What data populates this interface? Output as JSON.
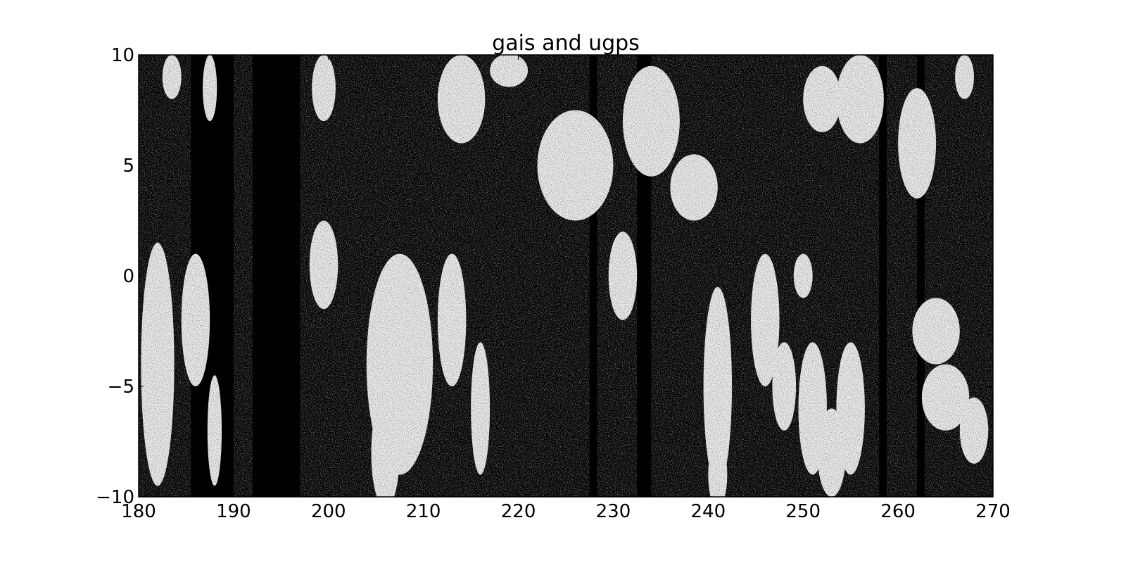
{
  "chart_data": {
    "type": "heatmap",
    "title": "gais and ugps",
    "xlabel": "",
    "ylabel": "",
    "xlim": [
      180,
      270
    ],
    "ylim": [
      -10,
      10
    ],
    "x_ticks": [
      "180",
      "190",
      "200",
      "210",
      "220",
      "230",
      "240",
      "250",
      "260",
      "270"
    ],
    "y_ticks": [
      "10",
      "5",
      "0",
      "−5",
      "−10"
    ],
    "colormap": "binary (black = 0, white = high)",
    "grid": false,
    "legend": "none",
    "colors": {
      "background": "#000000",
      "foreground": "#ffffff",
      "axis": "#000000"
    },
    "dark_bands_x": [
      [
        185.5,
        190
      ],
      [
        192,
        197
      ],
      [
        227.5,
        228.3
      ],
      [
        232.5,
        234
      ],
      [
        258,
        258.8
      ],
      [
        262,
        262.8
      ]
    ],
    "bright_blobs": [
      {
        "x": 182,
        "y": -4,
        "w": 3.5,
        "h": 11
      },
      {
        "x": 186,
        "y": -2,
        "w": 3,
        "h": 6
      },
      {
        "x": 188,
        "y": -7,
        "w": 1.5,
        "h": 5
      },
      {
        "x": 183.5,
        "y": 9,
        "w": 2,
        "h": 2
      },
      {
        "x": 187.5,
        "y": 8.5,
        "w": 1.5,
        "h": 3
      },
      {
        "x": 199.5,
        "y": 0.5,
        "w": 3,
        "h": 4
      },
      {
        "x": 199.5,
        "y": 8.5,
        "w": 2.5,
        "h": 3
      },
      {
        "x": 207.5,
        "y": -4,
        "w": 7,
        "h": 10
      },
      {
        "x": 213,
        "y": -2,
        "w": 3,
        "h": 6
      },
      {
        "x": 216,
        "y": -6,
        "w": 2,
        "h": 6
      },
      {
        "x": 206,
        "y": -8,
        "w": 3,
        "h": 5
      },
      {
        "x": 214,
        "y": 8,
        "w": 5,
        "h": 4
      },
      {
        "x": 219,
        "y": 9.3,
        "w": 4,
        "h": 1.5
      },
      {
        "x": 226,
        "y": 5,
        "w": 8,
        "h": 5
      },
      {
        "x": 234,
        "y": 7,
        "w": 6,
        "h": 5
      },
      {
        "x": 231,
        "y": 0,
        "w": 3,
        "h": 4
      },
      {
        "x": 238.5,
        "y": 4,
        "w": 5,
        "h": 3
      },
      {
        "x": 241,
        "y": -5,
        "w": 3,
        "h": 9
      },
      {
        "x": 246,
        "y": -2,
        "w": 3,
        "h": 6
      },
      {
        "x": 248,
        "y": -5,
        "w": 2.5,
        "h": 4
      },
      {
        "x": 250,
        "y": 0,
        "w": 2,
        "h": 2
      },
      {
        "x": 241,
        "y": -9,
        "w": 2,
        "h": 3
      },
      {
        "x": 251,
        "y": -6,
        "w": 3,
        "h": 6
      },
      {
        "x": 255,
        "y": -6,
        "w": 3,
        "h": 6
      },
      {
        "x": 253,
        "y": -8,
        "w": 3,
        "h": 4
      },
      {
        "x": 256,
        "y": 8,
        "w": 5,
        "h": 4
      },
      {
        "x": 262,
        "y": 6,
        "w": 4,
        "h": 5
      },
      {
        "x": 252,
        "y": 8,
        "w": 4,
        "h": 3
      },
      {
        "x": 264,
        "y": -2.5,
        "w": 5,
        "h": 3
      },
      {
        "x": 265,
        "y": -5.5,
        "w": 5,
        "h": 3
      },
      {
        "x": 268,
        "y": -7,
        "w": 3,
        "h": 3
      },
      {
        "x": 267,
        "y": 9,
        "w": 2,
        "h": 2
      }
    ]
  }
}
